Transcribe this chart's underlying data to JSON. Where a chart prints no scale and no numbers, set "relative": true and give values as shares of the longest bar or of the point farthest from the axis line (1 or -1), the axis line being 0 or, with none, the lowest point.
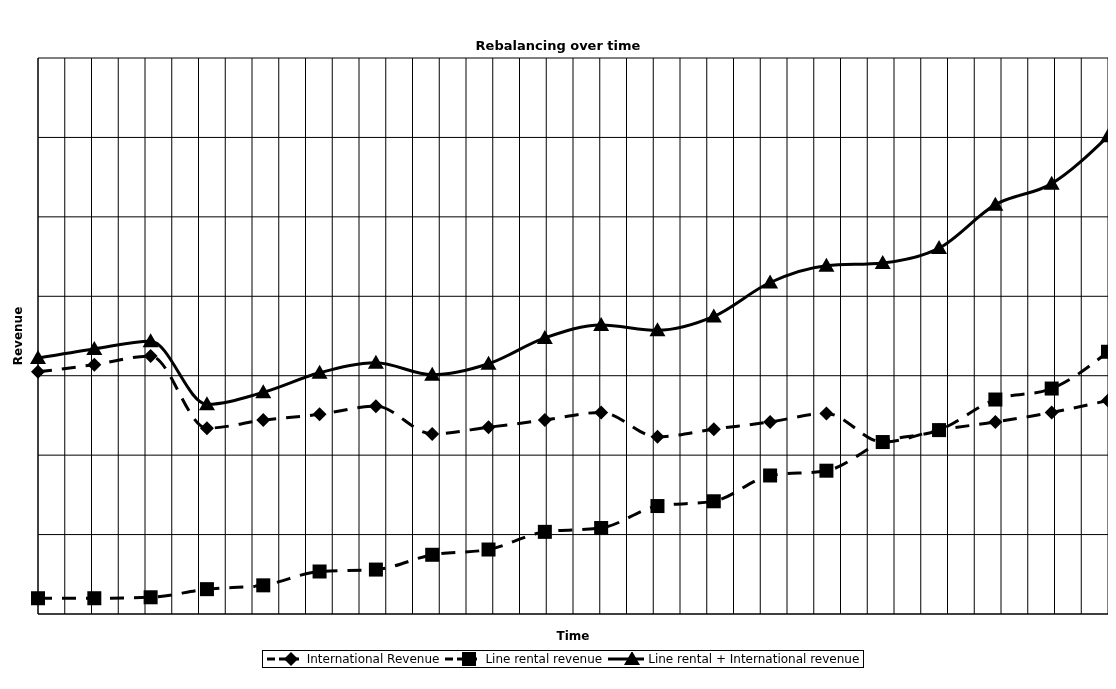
{
  "chart_data": {
    "type": "line",
    "title": "Rebalancing over time",
    "xlabel": "Time",
    "ylabel": "Revenue",
    "relative": true,
    "grid": true,
    "legend": "bottom",
    "categories": [
      null,
      null,
      null,
      null,
      null,
      null,
      null,
      null,
      null,
      null,
      null,
      null,
      null,
      null,
      null,
      null,
      null,
      null,
      null,
      null
    ],
    "series": [
      {
        "name": "International Revenue",
        "color": "#000000",
        "marker": "diamond",
        "line_style": "dashed",
        "values": [
          0.507,
          0.522,
          0.54,
          0.389,
          0.406,
          0.418,
          0.435,
          0.377,
          0.391,
          0.406,
          0.422,
          0.371,
          0.387,
          0.402,
          0.42,
          0.36,
          0.385,
          0.402,
          0.422,
          0.447
        ]
      },
      {
        "name": "Line rental revenue",
        "color": "#000000",
        "marker": "square",
        "line_style": "dashed",
        "values": [
          0.033,
          0.033,
          0.035,
          0.052,
          0.06,
          0.089,
          0.093,
          0.124,
          0.135,
          0.172,
          0.18,
          0.226,
          0.236,
          0.29,
          0.3,
          0.36,
          0.385,
          0.449,
          0.472,
          0.549
        ]
      },
      {
        "name": "Line rental + International revenue",
        "color": "#000000",
        "marker": "triangle",
        "line_style": "solid",
        "values": [
          0.536,
          0.555,
          0.571,
          0.439,
          0.464,
          0.505,
          0.526,
          0.501,
          0.524,
          0.578,
          0.605,
          0.594,
          0.623,
          0.694,
          0.729,
          0.735,
          0.766,
          0.857,
          0.901,
          1
        ]
      }
    ]
  }
}
